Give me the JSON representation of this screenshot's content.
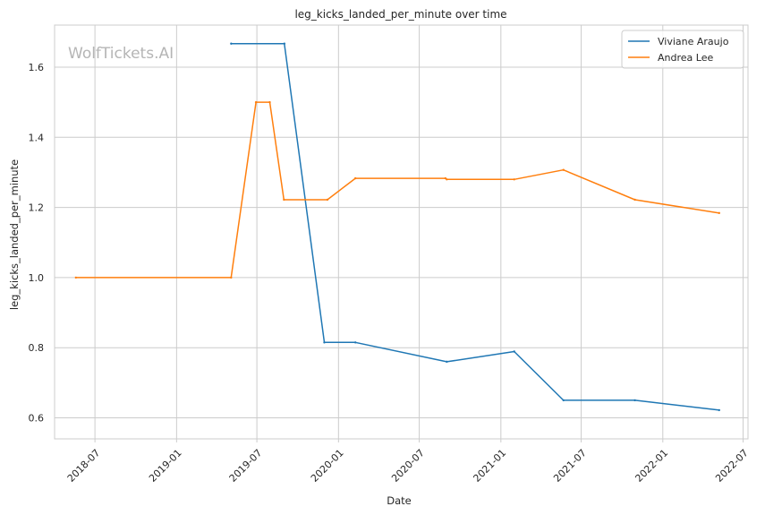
{
  "chart_data": {
    "type": "line",
    "title": "leg_kicks_landed_per_minute over time",
    "xlabel": "Date",
    "ylabel": "leg_kicks_landed_per_minute",
    "watermark": "WolfTickets.AI",
    "xlim": [
      "2018-04-01",
      "2022-07-12"
    ],
    "ylim": [
      0.54,
      1.72
    ],
    "x_ticks": [
      "2018-07",
      "2019-01",
      "2019-07",
      "2020-01",
      "2020-07",
      "2021-01",
      "2021-07",
      "2022-01",
      "2022-07"
    ],
    "y_ticks": [
      0.6,
      0.8,
      1.0,
      1.2,
      1.4,
      1.6
    ],
    "grid": true,
    "legend_position": "top-right",
    "series": [
      {
        "name": "Viviane Araujo",
        "color": "#1f77b4",
        "points": [
          {
            "x": "2019-05-04",
            "y": 1.667
          },
          {
            "x": "2019-09-01",
            "y": 1.667
          },
          {
            "x": "2019-11-30",
            "y": 0.815
          },
          {
            "x": "2020-02-08",
            "y": 0.815
          },
          {
            "x": "2020-09-01",
            "y": 0.76
          },
          {
            "x": "2021-01-31",
            "y": 0.789
          },
          {
            "x": "2021-05-22",
            "y": 0.65
          },
          {
            "x": "2021-10-30",
            "y": 0.65
          },
          {
            "x": "2022-05-08",
            "y": 0.622
          }
        ]
      },
      {
        "name": "Andrea Lee",
        "color": "#ff7f0e",
        "points": [
          {
            "x": "2018-05-19",
            "y": 1.0
          },
          {
            "x": "2019-05-04",
            "y": 1.0
          },
          {
            "x": "2019-06-29",
            "y": 1.5
          },
          {
            "x": "2019-07-30",
            "y": 1.5
          },
          {
            "x": "2019-08-31",
            "y": 1.222
          },
          {
            "x": "2019-12-07",
            "y": 1.222
          },
          {
            "x": "2020-02-08",
            "y": 1.283
          },
          {
            "x": "2020-08-29",
            "y": 1.283
          },
          {
            "x": "2020-09-01",
            "y": 1.28
          },
          {
            "x": "2021-01-31",
            "y": 1.28
          },
          {
            "x": "2021-05-22",
            "y": 1.307
          },
          {
            "x": "2021-10-30",
            "y": 1.222
          },
          {
            "x": "2022-05-08",
            "y": 1.184
          }
        ]
      }
    ]
  }
}
